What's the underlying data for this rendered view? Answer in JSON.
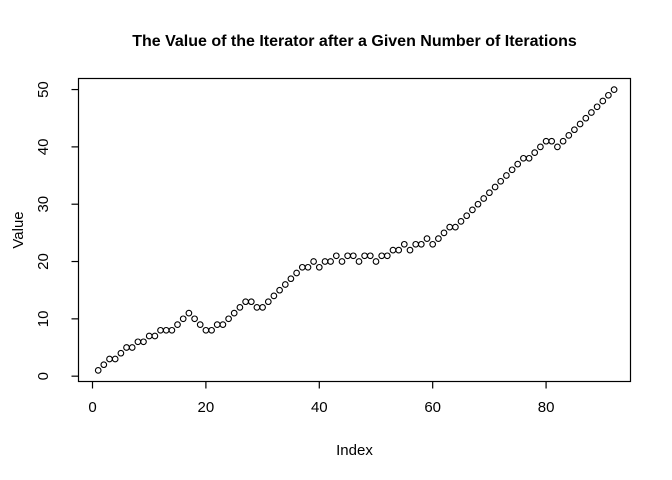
{
  "window": {
    "kind": "r-base-graphics-plot",
    "background_color": "#ffffff"
  },
  "chart_data": {
    "type": "scatter",
    "title": "The Value of the Iterator after a Given Number of Iterations",
    "xlabel": "Index",
    "ylabel": "Value",
    "marker": "open-circle",
    "grid": false,
    "legend": "none",
    "x_ticks": [
      0,
      20,
      40,
      60,
      80
    ],
    "y_ticks": [
      0,
      10,
      20,
      30,
      40,
      50
    ],
    "xlim": [
      -2.47,
      94.89
    ],
    "ylim": [
      -0.93,
      51.93
    ],
    "colors": {
      "points": "#000000",
      "axis": "#000000",
      "text": "#000000",
      "background": "#ffffff"
    },
    "x": [
      1,
      2,
      3,
      4,
      5,
      6,
      7,
      8,
      9,
      10,
      11,
      12,
      13,
      14,
      15,
      16,
      17,
      18,
      19,
      20,
      21,
      22,
      23,
      24,
      25,
      26,
      27,
      28,
      29,
      30,
      31,
      32,
      33,
      34,
      35,
      36,
      37,
      38,
      39,
      40,
      41,
      42,
      43,
      44,
      45,
      46,
      47,
      48,
      49,
      50,
      51,
      52,
      53,
      54,
      55,
      56,
      57,
      58,
      59,
      60,
      61,
      62,
      63,
      64,
      65,
      66,
      67,
      68,
      69,
      70,
      71,
      72,
      73,
      74,
      75,
      76,
      77,
      78,
      79,
      80,
      81,
      82,
      83,
      84,
      85,
      86,
      87,
      88,
      89,
      90,
      91,
      92
    ],
    "values": [
      1,
      2,
      3,
      3,
      4,
      5,
      5,
      6,
      6,
      7,
      7,
      8,
      8,
      8,
      9,
      10,
      11,
      10,
      9,
      8,
      8,
      9,
      9,
      10,
      11,
      12,
      13,
      13,
      12,
      12,
      13,
      14,
      15,
      16,
      17,
      18,
      19,
      19,
      20,
      19,
      20,
      20,
      21,
      20,
      21,
      21,
      20,
      21,
      21,
      20,
      21,
      21,
      22,
      22,
      23,
      22,
      23,
      23,
      24,
      23,
      24,
      25,
      26,
      26,
      27,
      28,
      29,
      30,
      31,
      32,
      33,
      34,
      35,
      36,
      37,
      38,
      38,
      39,
      40,
      41,
      41,
      40,
      41,
      42,
      43,
      44,
      45,
      46,
      47,
      48,
      49,
      50
    ]
  }
}
